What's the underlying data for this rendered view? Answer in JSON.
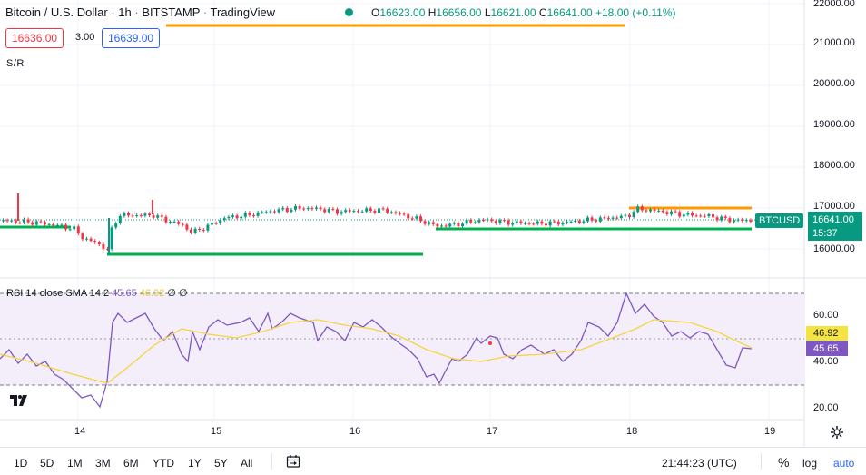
{
  "header": {
    "symbol_name": "Bitcoin / U.S. Dollar",
    "interval": "1h",
    "exchange": "BITSTAMP",
    "provider": "TradingView",
    "sep": "·",
    "ohlc": {
      "o_label": "O",
      "o": "16623.00",
      "h_label": "H",
      "h": "16656.00",
      "l_label": "L",
      "l": "16621.00",
      "c_label": "C",
      "c": "16641.00",
      "change": "+18.00 (+0.11%)"
    }
  },
  "trade": {
    "sell": "16636.00",
    "spread": "3.00",
    "buy": "16639.00"
  },
  "indicator_sr": "S/R",
  "price_axis": {
    "labels": [
      "22000.00",
      "21000.00",
      "20000.00",
      "19000.00",
      "18000.00",
      "17000.00",
      "16000.00"
    ],
    "symbol_tag": "BTCUSD",
    "last_price": "16641.00",
    "countdown": "15:37"
  },
  "rsi": {
    "title": "RSI 14 close SMA 14 2",
    "value": "45.65",
    "sma": "46.92",
    "extra1": "∅",
    "extra2": "∅",
    "axis_labels": [
      "60.00",
      "40.00",
      "20.00"
    ]
  },
  "time_axis": {
    "labels": [
      "14",
      "15",
      "16",
      "17",
      "18",
      "19"
    ]
  },
  "bottom": {
    "timeframes": [
      "1D",
      "5D",
      "1M",
      "3M",
      "6M",
      "YTD",
      "1Y",
      "5Y",
      "All"
    ],
    "time": "21:44:23 (UTC)",
    "percent": "%",
    "log": "log",
    "auto": "auto"
  },
  "colors": {
    "up": "#089981",
    "down": "#f23645",
    "rsi": "#7e57c2",
    "rsi_sma": "#f5d442",
    "resistance": "#ff9800",
    "support": "#00b050",
    "rsi_band": "#f3eefa"
  }
}
